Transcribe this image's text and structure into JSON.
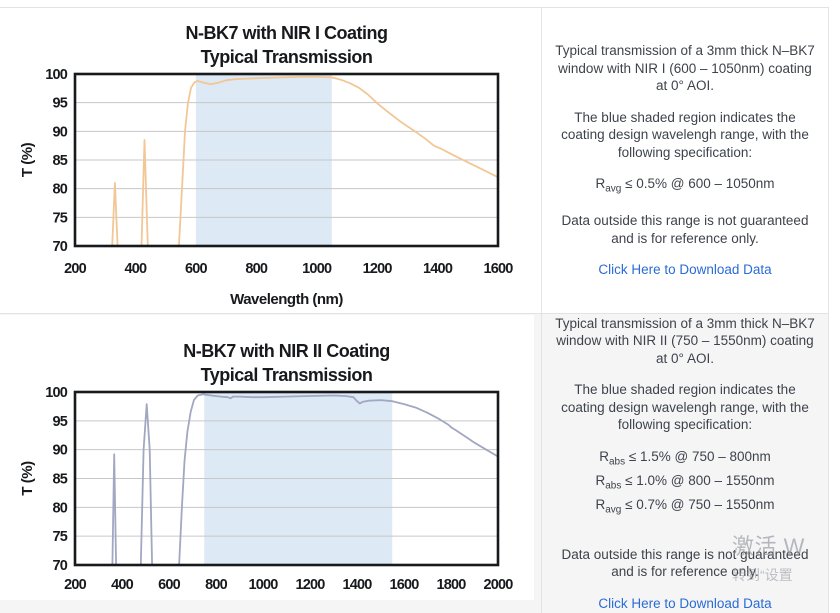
{
  "colors": {
    "curve_nir1": "#f2c795",
    "curve_nir2": "#a2a7c2",
    "shade_blue": "#dde9f4",
    "grid": "#c7c7c7",
    "plot_border": "#17191c",
    "link_blue": "#2a6bd5",
    "row2_bg": "#f5f5f6",
    "divider": "#e3e3e3"
  },
  "watermark": {
    "line1": "激活 W",
    "line2": "转到“设置"
  },
  "rows": [
    {
      "info": {
        "p1": "Typical transmission of a 3mm thick N–BK7 window with NIR I (600 – 1050nm) coating at 0° AOI.",
        "p2": "The blue shaded region indicates the coating design wavelengh range, with the following specification:",
        "specs": [
          {
            "base": "R",
            "sub": "avg",
            "rest": " ≤ 0.5% @ 600 – 1050nm"
          }
        ],
        "note": "Data outside this range is not guaranteed and is for reference only.",
        "link": "Click Here to Download Data"
      }
    },
    {
      "info": {
        "p1": "Typical transmission of a 3mm thick N–BK7 window with NIR II (750 – 1550nm) coating at 0° AOI.",
        "p2": "The blue shaded region indicates the coating design wavelengh range, with the following specification:",
        "specs": [
          {
            "base": "R",
            "sub": "abs",
            "rest": " ≤ 1.5% @ 750 – 800nm"
          },
          {
            "base": "R",
            "sub": "abs",
            "rest": " ≤ 1.0% @ 800 – 1550nm"
          },
          {
            "base": "R",
            "sub": "avg",
            "rest": " ≤ 0.7% @ 750 – 1550nm"
          }
        ],
        "note": "Data outside this range is not guaranteed and is for reference only.",
        "link": "Click Here to Download Data"
      }
    }
  ],
  "chart_data": [
    {
      "type": "line",
      "title": "N-BK7 with NIR I Coating Typical Transmission",
      "title_lines": [
        "N-BK7 with NIR I Coating",
        "Typical Transmission"
      ],
      "xlabel": "Wavelength (nm)",
      "ylabel": "T (%)",
      "xlim": [
        200,
        1600
      ],
      "ylim": [
        70,
        100
      ],
      "xticks": [
        200,
        400,
        600,
        800,
        1000,
        1200,
        1400,
        1600
      ],
      "yticks": [
        70,
        75,
        80,
        85,
        90,
        95,
        100
      ],
      "grid": "horizontal",
      "legend": "none",
      "shaded_region": {
        "from": 600,
        "to": 1050,
        "color": "#dde9f4"
      },
      "line_color": "#f2c795",
      "series": [
        {
          "name": "Typical Transmission",
          "points": [
            [
              315,
              62
            ],
            [
              323,
              70
            ],
            [
              332,
              81
            ],
            [
              341,
              70
            ],
            [
              349,
              62
            ],
            [
              413,
              62
            ],
            [
              420,
              70
            ],
            [
              430,
              88.5
            ],
            [
              441,
              70
            ],
            [
              448,
              62
            ],
            [
              536,
              62
            ],
            [
              544,
              70
            ],
            [
              554,
              80
            ],
            [
              564,
              90
            ],
            [
              574,
              95
            ],
            [
              584,
              97.6
            ],
            [
              595,
              98.5
            ],
            [
              605,
              98.8
            ],
            [
              625,
              98.5
            ],
            [
              650,
              98.2
            ],
            [
              675,
              98.5
            ],
            [
              700,
              98.9
            ],
            [
              730,
              99.1
            ],
            [
              770,
              99.2
            ],
            [
              820,
              99.3
            ],
            [
              880,
              99.4
            ],
            [
              950,
              99.5
            ],
            [
              1010,
              99.5
            ],
            [
              1050,
              99.4
            ],
            [
              1080,
              99.0
            ],
            [
              1110,
              98.4
            ],
            [
              1140,
              97.6
            ],
            [
              1170,
              96.4
            ],
            [
              1200,
              94.9
            ],
            [
              1240,
              93.2
            ],
            [
              1280,
              91.6
            ],
            [
              1325,
              90.0
            ],
            [
              1360,
              88.7
            ],
            [
              1388,
              87.5
            ],
            [
              1410,
              87.0
            ],
            [
              1450,
              85.9
            ],
            [
              1500,
              84.6
            ],
            [
              1550,
              83.3
            ],
            [
              1600,
              82.0
            ]
          ]
        }
      ]
    },
    {
      "type": "line",
      "title": "N-BK7 with NIR II Coating Typical Transmission",
      "title_lines": [
        "N-BK7 with NIR II Coating",
        "Typical Transmission"
      ],
      "xlabel": "",
      "ylabel": "T (%)",
      "xlim": [
        200,
        2000
      ],
      "ylim": [
        70,
        100
      ],
      "xticks": [
        200,
        400,
        600,
        800,
        1000,
        1200,
        1400,
        1600,
        1800,
        2000
      ],
      "yticks": [
        70,
        75,
        80,
        85,
        90,
        95,
        100
      ],
      "grid": "horizontal",
      "legend": "none",
      "shaded_region": {
        "from": 750,
        "to": 1550,
        "color": "#dde9f4"
      },
      "line_color": "#a2a7c2",
      "series": [
        {
          "name": "Typical Transmission",
          "points": [
            [
              352,
              62
            ],
            [
              359,
              70
            ],
            [
              367,
              89.2
            ],
            [
              375,
              70
            ],
            [
              382,
              62
            ],
            [
              472,
              62
            ],
            [
              480,
              70
            ],
            [
              492,
              90
            ],
            [
              505,
              97.9
            ],
            [
              518,
              90
            ],
            [
              528,
              70
            ],
            [
              535,
              62
            ],
            [
              630,
              62
            ],
            [
              643,
              70
            ],
            [
              655,
              80
            ],
            [
              666,
              88
            ],
            [
              678,
              93
            ],
            [
              692,
              96.5
            ],
            [
              706,
              98.6
            ],
            [
              722,
              99.4
            ],
            [
              745,
              99.6
            ],
            [
              780,
              99.4
            ],
            [
              820,
              99.2
            ],
            [
              850,
              99.1
            ],
            [
              862,
              98.9
            ],
            [
              872,
              99.2
            ],
            [
              900,
              99.2
            ],
            [
              950,
              99.1
            ],
            [
              1000,
              99.1
            ],
            [
              1100,
              99.2
            ],
            [
              1200,
              99.3
            ],
            [
              1300,
              99.4
            ],
            [
              1350,
              99.3
            ],
            [
              1385,
              99.1
            ],
            [
              1400,
              98.4
            ],
            [
              1412,
              98.0
            ],
            [
              1425,
              98.3
            ],
            [
              1450,
              98.5
            ],
            [
              1500,
              98.6
            ],
            [
              1550,
              98.4
            ],
            [
              1600,
              97.9
            ],
            [
              1650,
              97.3
            ],
            [
              1700,
              96.4
            ],
            [
              1750,
              95.3
            ],
            [
              1790,
              94.3
            ],
            [
              1800,
              93.9
            ],
            [
              1820,
              93.4
            ],
            [
              1860,
              92.3
            ],
            [
              1900,
              91.2
            ],
            [
              1950,
              90.0
            ],
            [
              2000,
              88.8
            ]
          ]
        }
      ]
    }
  ]
}
